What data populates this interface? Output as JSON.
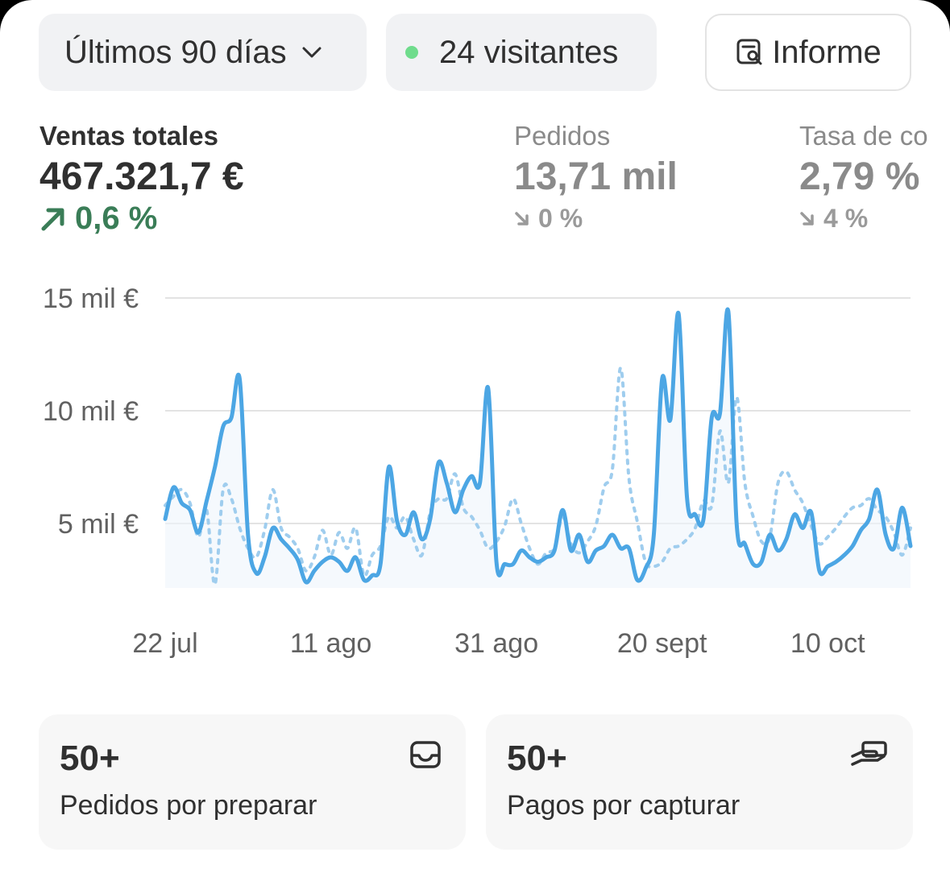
{
  "toolbar": {
    "date_range_label": "Últimos 90 días",
    "visitors_label": "24 visitantes",
    "report_label": "Informe",
    "live_dot_color": "#6fdc8c"
  },
  "metrics": {
    "sales": {
      "label": "Ventas totales",
      "value": "467.321,7 €",
      "delta": "0,6 %",
      "trend": "up",
      "color": "#3a7d57"
    },
    "orders": {
      "label": "Pedidos",
      "value": "13,71 mil",
      "delta": "0 %",
      "trend": "down"
    },
    "conversion": {
      "label": "Tasa de co",
      "value": "2,79 %",
      "delta": "4 %",
      "trend": "down"
    }
  },
  "chart_data": {
    "type": "line",
    "ylim": [
      0,
      15000
    ],
    "y_ticks": [
      {
        "value": 15000,
        "label": "15 mil €"
      },
      {
        "value": 10000,
        "label": "10 mil €"
      },
      {
        "value": 5000,
        "label": "5 mil €"
      }
    ],
    "x_ticks": [
      {
        "index": 0,
        "label": "22 jul"
      },
      {
        "index": 20,
        "label": "11 ago"
      },
      {
        "index": 40,
        "label": "31 ago"
      },
      {
        "index": 60,
        "label": "20 sept"
      },
      {
        "index": 80,
        "label": "10 oct"
      }
    ],
    "x_count": 91,
    "current_color": "#4ca6e4",
    "previous_color": "#9fcdee",
    "current": [
      5200,
      6600,
      5900,
      5600,
      4600,
      6000,
      7500,
      9300,
      9700,
      11400,
      4500,
      2800,
      3500,
      4800,
      4300,
      3900,
      3400,
      2400,
      2900,
      3300,
      3500,
      3300,
      2900,
      3500,
      2500,
      2700,
      3200,
      7500,
      5100,
      4500,
      5500,
      4300,
      5200,
      7700,
      6800,
      5500,
      6500,
      7100,
      6800,
      11000,
      3300,
      3200,
      3200,
      3800,
      3500,
      3300,
      3500,
      3800,
      5600,
      3800,
      4500,
      3300,
      3800,
      4000,
      4500,
      3900,
      3900,
      2500,
      3000,
      4500,
      11400,
      9600,
      14300,
      6200,
      5400,
      5200,
      9700,
      9900,
      14400,
      5000,
      4100,
      3200,
      3300,
      4500,
      3800,
      4300,
      5400,
      4800,
      5500,
      2900,
      3100,
      3300,
      3600,
      4000,
      4700,
      5200,
      6500,
      4500,
      3900,
      5700,
      4000
    ],
    "previous": [
      5800,
      6200,
      6500,
      5900,
      4400,
      5600,
      2300,
      6500,
      6100,
      4800,
      3900,
      3500,
      4700,
      6500,
      4800,
      4400,
      3900,
      2900,
      3500,
      4700,
      3600,
      4600,
      3900,
      4800,
      2700,
      3600,
      4000,
      5300,
      4800,
      5300,
      4300,
      3600,
      5500,
      6100,
      6100,
      7200,
      5700,
      5300,
      4700,
      3900,
      4200,
      4900,
      6100,
      5000,
      3900,
      3200,
      3700,
      3900,
      5300,
      4100,
      3700,
      4200,
      4900,
      6600,
      7400,
      11900,
      7000,
      5100,
      3300,
      3100,
      3300,
      3900,
      4000,
      4300,
      4800,
      6000,
      5800,
      9100,
      6800,
      10600,
      6800,
      5300,
      4200,
      4400,
      6800,
      7300,
      6500,
      5900,
      4900,
      4100,
      4400,
      4800,
      5300,
      5700,
      5800,
      6100,
      5600,
      5300,
      4600,
      3600,
      4800
    ]
  },
  "cards": [
    {
      "count": "50+",
      "label": "Pedidos por preparar",
      "icon": "inbox-icon"
    },
    {
      "count": "50+",
      "label": "Pagos por capturar",
      "icon": "hand-cash-icon"
    }
  ]
}
